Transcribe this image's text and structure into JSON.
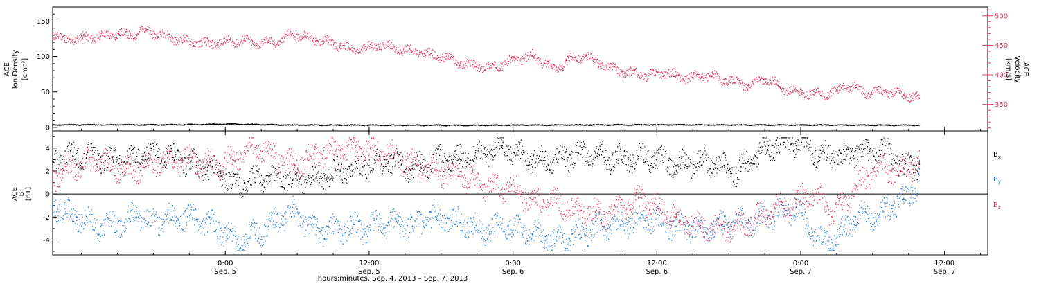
{
  "colors": {
    "density": "#000000",
    "velocity": "#e8345a",
    "bx": "#000000",
    "by": "#1f7fd8",
    "bz": "#e8345a",
    "axis": "#000000"
  },
  "x_axis": {
    "title": "hours:minutes, Sep.  4, 2013 – Sep.  7, 2013",
    "domain_hours": [
      0,
      78
    ],
    "ticks": [
      {
        "t": 14.4,
        "time": "0:00",
        "date": "Sep. 5"
      },
      {
        "t": 26.4,
        "time": "12:00",
        "date": "Sep. 5"
      },
      {
        "t": 38.4,
        "time": "0:00",
        "date": "Sep. 6"
      },
      {
        "t": 50.4,
        "time": "12:00",
        "date": "Sep. 6"
      },
      {
        "t": 62.4,
        "time": "0:00",
        "date": "Sep. 7"
      },
      {
        "t": 74.4,
        "time": "12:00",
        "date": "Sep. 7"
      }
    ]
  },
  "chart_data": [
    {
      "type": "scatter",
      "panel": "top",
      "ylabel_left": [
        "ACE",
        "Ion Density"
      ],
      "ylabel_left_units": "[cm⁻³]",
      "ylabel_right": [
        "ACE",
        "Velocity"
      ],
      "ylabel_right_units": "[km/s]",
      "ylim_left": [
        -5,
        170
      ],
      "yticks_left": [
        0,
        50,
        100,
        150
      ],
      "ylim_right": [
        305,
        515
      ],
      "yticks_right": [
        350,
        400,
        450,
        500
      ],
      "x_range_hours": [
        0,
        72.3
      ],
      "series": [
        {
          "axis": "left",
          "color_key": "density",
          "points": [
            [
              0,
              3.5
            ],
            [
              10,
              3.6
            ],
            [
              14.9,
              4.5
            ],
            [
              20,
              3.2
            ],
            [
              30,
              3.0
            ],
            [
              35,
              2.8
            ],
            [
              40,
              3.2
            ],
            [
              50,
              3.5
            ],
            [
              60,
              3.3
            ],
            [
              72.3,
              3.0
            ]
          ]
        },
        {
          "axis": "right",
          "color_key": "velocity",
          "points": [
            [
              0,
              470
            ],
            [
              1,
              458
            ],
            [
              2.5,
              462
            ],
            [
              4,
              465
            ],
            [
              5.5,
              470
            ],
            [
              6.5,
              466
            ],
            [
              7.5,
              476
            ],
            [
              8.5,
              470
            ],
            [
              10,
              463
            ],
            [
              11,
              457
            ],
            [
              12,
              455
            ],
            [
              13,
              452
            ],
            [
              14.5,
              456
            ],
            [
              16,
              458
            ],
            [
              17,
              453
            ],
            [
              18,
              455
            ],
            [
              19,
              457
            ],
            [
              20,
              470
            ],
            [
              21,
              465
            ],
            [
              22,
              458
            ],
            [
              23,
              455
            ],
            [
              24,
              450
            ],
            [
              25,
              440
            ],
            [
              26,
              445
            ],
            [
              27,
              450
            ],
            [
              28,
              448
            ],
            [
              29,
              442
            ],
            [
              30,
              440
            ],
            [
              31.5,
              434
            ],
            [
              32.5,
              430
            ],
            [
              34,
              420
            ],
            [
              35,
              415
            ],
            [
              36.5,
              412
            ],
            [
              37.5,
              418
            ],
            [
              38.5,
              425
            ],
            [
              40,
              432
            ],
            [
              41,
              420
            ],
            [
              42,
              410
            ],
            [
              43,
              425
            ],
            [
              44.5,
              432
            ],
            [
              45.5,
              420
            ],
            [
              46.5,
              412
            ],
            [
              47.5,
              405
            ],
            [
              48.5,
              402
            ],
            [
              49.5,
              398
            ],
            [
              51,
              405
            ],
            [
              52,
              398
            ],
            [
              53,
              394
            ],
            [
              54,
              398
            ],
            [
              55,
              397
            ],
            [
              56,
              392
            ],
            [
              57,
              388
            ],
            [
              58,
              382
            ],
            [
              59,
              390
            ],
            [
              59.5,
              393
            ],
            [
              60.5,
              382
            ],
            [
              61.5,
              373
            ],
            [
              62.5,
              370
            ],
            [
              63.5,
              366
            ],
            [
              64.5,
              368
            ],
            [
              65.5,
              372
            ],
            [
              66,
              382
            ],
            [
              67,
              378
            ],
            [
              68,
              368
            ],
            [
              69,
              372
            ],
            [
              70,
              370
            ],
            [
              71,
              366
            ],
            [
              72,
              362
            ],
            [
              72.3,
              360
            ]
          ]
        }
      ]
    },
    {
      "type": "scatter",
      "panel": "bottom",
      "ylabel": [
        "ACE",
        "B"
      ],
      "ylabel_units": "[nT]",
      "ylim": [
        -5.3,
        5.5
      ],
      "yticks": [
        -4,
        -2,
        0,
        2,
        4
      ],
      "x_range_hours": [
        0,
        72.3
      ],
      "zero_line": true,
      "legend": [
        "B_x",
        "B_y",
        "B_z"
      ],
      "legend_position": "right",
      "series": [
        {
          "name": "Bx",
          "color_key": "bx",
          "points": [
            [
              0,
              2.8
            ],
            [
              2,
              3.5
            ],
            [
              4,
              3.2
            ],
            [
              6,
              2.8
            ],
            [
              8,
              3.5
            ],
            [
              10,
              3.2
            ],
            [
              12,
              2.5
            ],
            [
              14,
              1.8
            ],
            [
              15,
              0.8
            ],
            [
              16,
              1.0
            ],
            [
              18,
              1.5
            ],
            [
              20,
              1.2
            ],
            [
              22,
              1.5
            ],
            [
              24,
              2.0
            ],
            [
              26,
              2.5
            ],
            [
              28,
              2.8
            ],
            [
              30,
              2.2
            ],
            [
              32,
              3.0
            ],
            [
              34,
              3.0
            ],
            [
              36,
              3.5
            ],
            [
              37.5,
              4.2
            ],
            [
              38.5,
              3.6
            ],
            [
              40,
              3.0
            ],
            [
              42,
              3.0
            ],
            [
              44,
              3.5
            ],
            [
              46,
              3.2
            ],
            [
              48,
              3.0
            ],
            [
              50,
              3.2
            ],
            [
              52,
              2.5
            ],
            [
              54,
              2.8
            ],
            [
              56,
              2.5
            ],
            [
              57,
              1.8
            ],
            [
              58,
              2.8
            ],
            [
              59,
              3.5
            ],
            [
              60,
              4.2
            ],
            [
              61,
              4.5
            ],
            [
              62,
              4.6
            ],
            [
              63,
              4.4
            ],
            [
              64,
              3.2
            ],
            [
              65,
              3.5
            ],
            [
              66,
              3.0
            ],
            [
              67,
              3.8
            ],
            [
              68,
              3.5
            ],
            [
              69,
              3.8
            ],
            [
              70,
              3.5
            ],
            [
              71,
              2.2
            ],
            [
              72.3,
              2.6
            ]
          ]
        },
        {
          "name": "By",
          "color_key": "by",
          "points": [
            [
              0,
              -1.0
            ],
            [
              2,
              -2.0
            ],
            [
              4,
              -2.8
            ],
            [
              6,
              -2.5
            ],
            [
              7,
              -1.5
            ],
            [
              8,
              -2.5
            ],
            [
              10,
              -2.0
            ],
            [
              12,
              -2.2
            ],
            [
              14,
              -3.0
            ],
            [
              15.5,
              -4.4
            ],
            [
              16,
              -4.0
            ],
            [
              18,
              -2.8
            ],
            [
              20,
              -1.5
            ],
            [
              22,
              -3.2
            ],
            [
              24,
              -3.0
            ],
            [
              26,
              -3.0
            ],
            [
              28,
              -2.5
            ],
            [
              30,
              -2.8
            ],
            [
              32,
              -2.0
            ],
            [
              34,
              -2.5
            ],
            [
              36,
              -3.2
            ],
            [
              38,
              -2.8
            ],
            [
              40,
              -3.5
            ],
            [
              42,
              -4.0
            ],
            [
              44,
              -3.5
            ],
            [
              46,
              -2.8
            ],
            [
              48,
              -2.5
            ],
            [
              50,
              -2.2
            ],
            [
              52,
              -2.8
            ],
            [
              54,
              -3.0
            ],
            [
              56,
              -2.8
            ],
            [
              58,
              -2.5
            ],
            [
              60,
              -1.8
            ],
            [
              62,
              -1.2
            ],
            [
              63,
              -2.8
            ],
            [
              64,
              -4.0
            ],
            [
              65,
              -4.2
            ],
            [
              66,
              -3.2
            ],
            [
              67,
              -2.0
            ],
            [
              68,
              -1.8
            ],
            [
              69,
              -2.0
            ],
            [
              70,
              -1.0
            ],
            [
              71,
              -0.5
            ],
            [
              72,
              0.5
            ],
            [
              72.3,
              2.2
            ]
          ]
        },
        {
          "name": "Bz",
          "color_key": "bz",
          "points": [
            [
              0,
              1.5
            ],
            [
              2,
              2.5
            ],
            [
              4,
              2.8
            ],
            [
              6,
              2.0
            ],
            [
              8,
              2.5
            ],
            [
              10,
              3.0
            ],
            [
              12,
              2.8
            ],
            [
              14,
              2.5
            ],
            [
              15,
              3.0
            ],
            [
              16,
              3.8
            ],
            [
              17,
              4.2
            ],
            [
              18,
              3.5
            ],
            [
              20,
              2.5
            ],
            [
              22,
              3.5
            ],
            [
              24,
              3.8
            ],
            [
              26,
              4.0
            ],
            [
              28,
              3.5
            ],
            [
              30,
              2.5
            ],
            [
              32,
              2.0
            ],
            [
              34,
              1.5
            ],
            [
              36,
              0.8
            ],
            [
              38,
              0.5
            ],
            [
              39,
              0.0
            ],
            [
              40,
              -0.5
            ],
            [
              42,
              -0.8
            ],
            [
              44,
              -1.5
            ],
            [
              46,
              -1.8
            ],
            [
              48,
              -0.8
            ],
            [
              49,
              -0.3
            ],
            [
              50,
              -1.0
            ],
            [
              52,
              -2.0
            ],
            [
              54,
              -2.8
            ],
            [
              56,
              -3.0
            ],
            [
              58,
              -2.5
            ],
            [
              60,
              -1.5
            ],
            [
              61,
              -1.0
            ],
            [
              62,
              -0.5
            ],
            [
              63,
              0.0
            ],
            [
              64,
              -0.5
            ],
            [
              65,
              -1.5
            ],
            [
              66,
              -1.0
            ],
            [
              67,
              0.5
            ],
            [
              68,
              1.5
            ],
            [
              69,
              2.5
            ],
            [
              70,
              2.0
            ],
            [
              71,
              2.2
            ],
            [
              72.3,
              2.8
            ]
          ]
        }
      ]
    }
  ]
}
